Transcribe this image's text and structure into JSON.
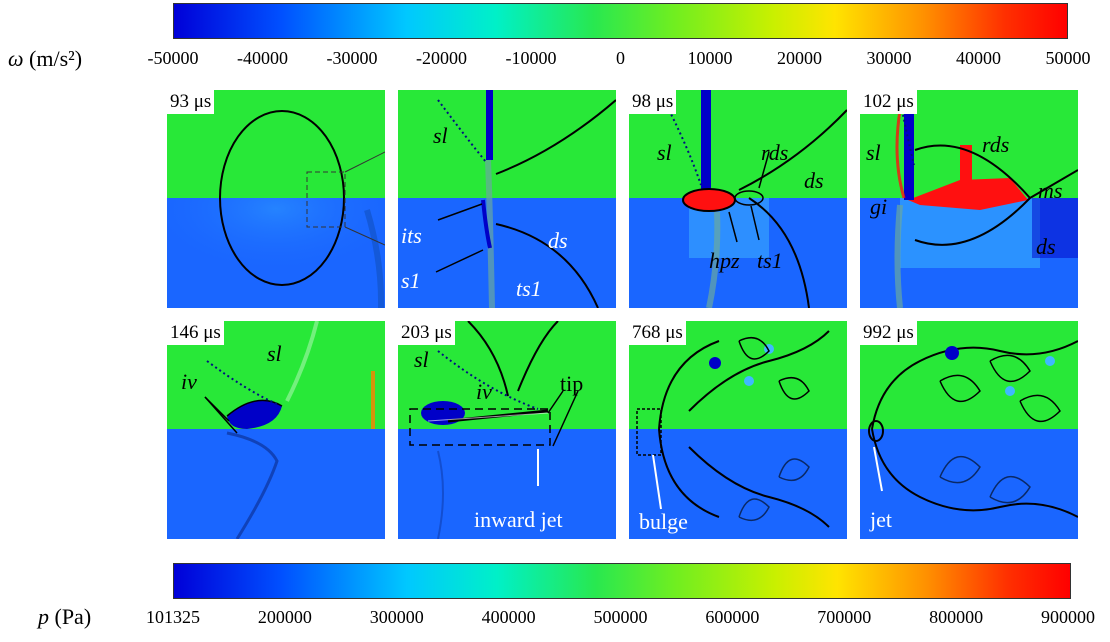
{
  "colorbar_top": {
    "symbol": "ω",
    "unit": "(m/s²)",
    "ticks": [
      "-50000",
      "-40000",
      "-30000",
      "-20000",
      "-10000",
      "0",
      "10000",
      "20000",
      "30000",
      "40000",
      "50000"
    ]
  },
  "colorbar_bottom": {
    "symbol": "p",
    "unit": "(Pa)",
    "ticks": [
      "101325",
      "200000",
      "300000",
      "400000",
      "500000",
      "600000",
      "700000",
      "800000",
      "900000"
    ]
  },
  "panels": {
    "p1": {
      "time": "93 μs"
    },
    "p2": {
      "time": "",
      "sl": "sl",
      "its": "its",
      "s1": "s1",
      "ds": "ds",
      "ts1": "ts1"
    },
    "p3": {
      "time": "98 μs",
      "sl": "sl",
      "rds": "rds",
      "ds": "ds",
      "hpz": "hpz",
      "ts1": "ts1"
    },
    "p4": {
      "time": "102 μs",
      "sl": "sl",
      "rds": "rds",
      "ms": "ms",
      "gi": "gi",
      "ds": "ds"
    },
    "p5": {
      "time": "146 μs",
      "sl": "sl",
      "iv": "iv"
    },
    "p6": {
      "time": "203 μs",
      "sl": "sl",
      "iv": "iv",
      "tip": "tip",
      "inward_jet": "inward jet"
    },
    "p7": {
      "time": "768 μs",
      "bulge": "bulge"
    },
    "p8": {
      "time": "992 μs",
      "jet": "jet"
    }
  },
  "colors": {
    "upper_field": "#28e838",
    "lower_field": "#1a66ff",
    "vortex": "#0000c8",
    "high": "#ff1010"
  }
}
